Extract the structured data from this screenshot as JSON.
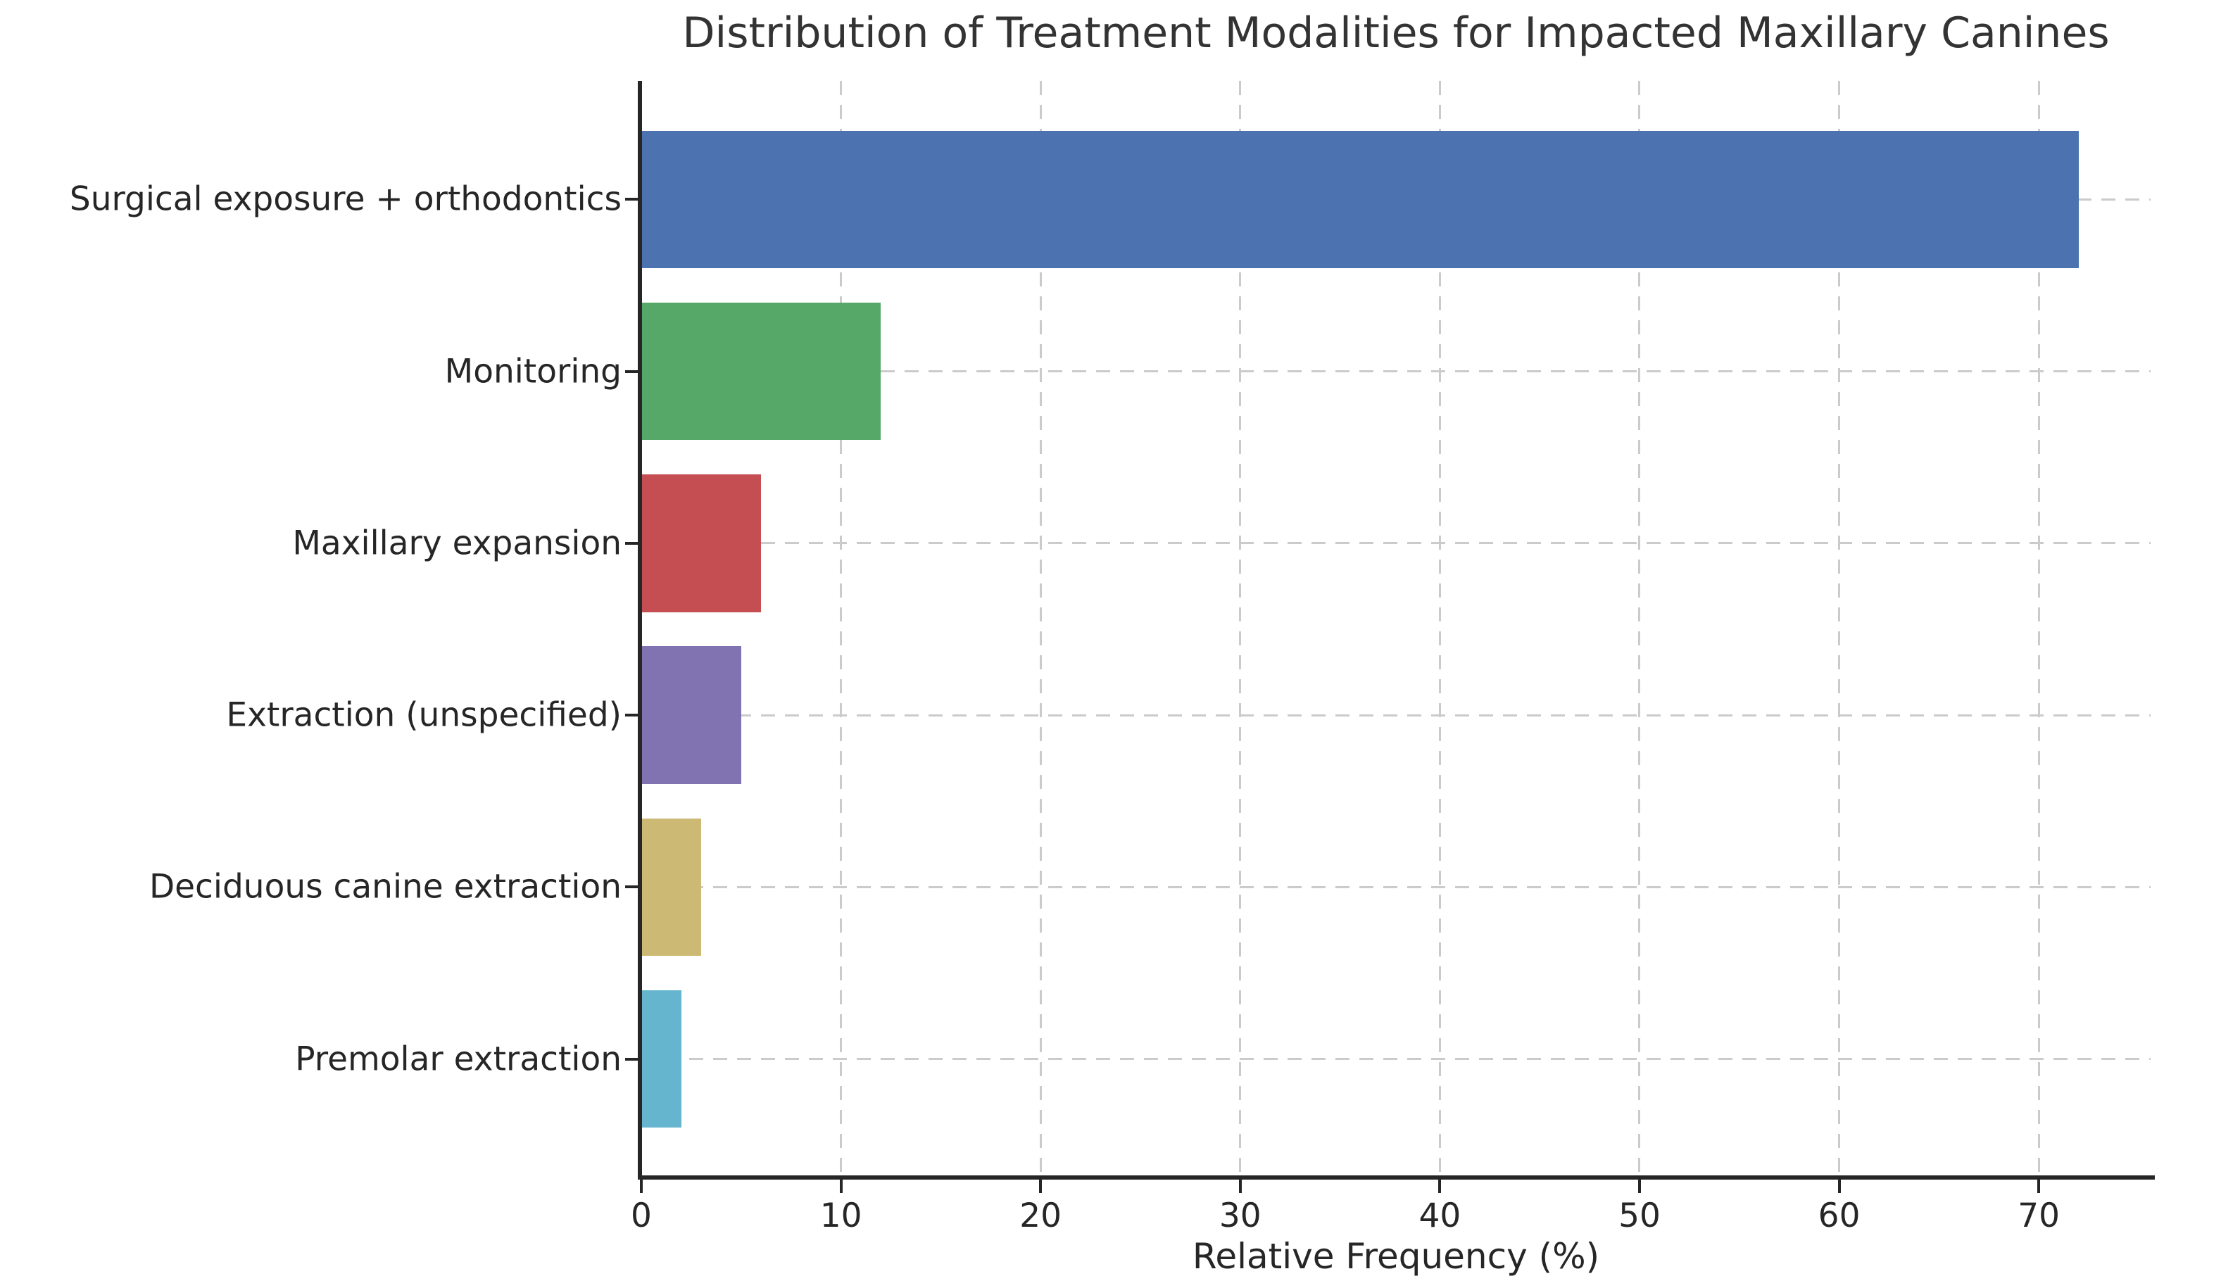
{
  "title": "Distribution of Treatment Modalities for Impacted Maxillary Canines",
  "x_axis_label": "Relative Frequency (%)",
  "chart_data": {
    "type": "bar",
    "orientation": "horizontal",
    "title": "Distribution of Treatment Modalities for Impacted Maxillary Canines",
    "xlabel": "Relative Frequency (%)",
    "ylabel": "",
    "categories": [
      "Surgical exposure + orthodontics",
      "Monitoring",
      "Maxillary expansion",
      "Extraction (unspecified)",
      "Deciduous canine extraction",
      "Premolar extraction"
    ],
    "values": [
      72,
      12,
      6,
      5,
      3,
      2
    ],
    "bar_colors": [
      "#4C72B0",
      "#55A868",
      "#C44E52",
      "#8172B2",
      "#CCB974",
      "#64B5CD"
    ],
    "xlim": [
      0,
      75.6
    ],
    "xticks": [
      0,
      10,
      20,
      30,
      40,
      50,
      60,
      70
    ],
    "grid": "dashed",
    "grid_color": "#cbcbcb",
    "axis_color": "#262626",
    "background": "#ffffff",
    "legend": "none"
  }
}
